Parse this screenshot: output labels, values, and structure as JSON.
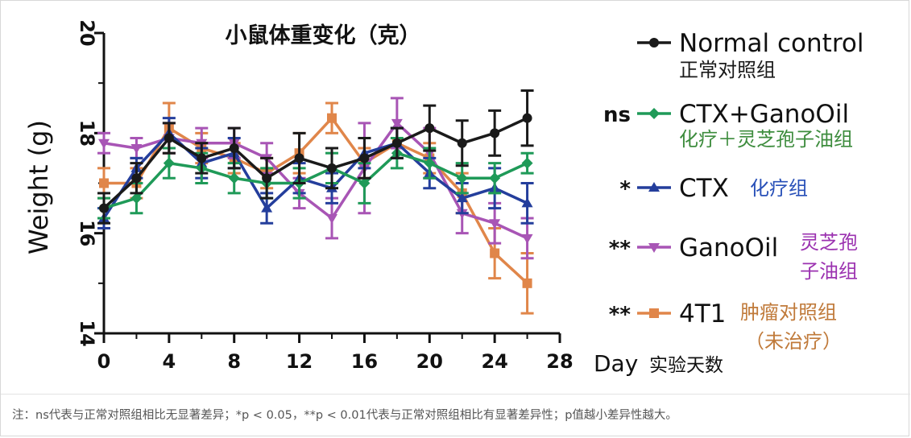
{
  "chart_data": {
    "type": "line",
    "title": "小鼠体重变化（克）",
    "xlabel": "Day",
    "xlabel_cn": "实验天数",
    "ylabel": "Weight (g)",
    "xlim": [
      0,
      28
    ],
    "ylim": [
      14,
      20
    ],
    "xticks": [
      "0",
      "4",
      "8",
      "12",
      "16",
      "20",
      "24",
      "28"
    ],
    "xtick_values": [
      0,
      4,
      8,
      12,
      16,
      20,
      24,
      28
    ],
    "yticks": [
      "14",
      "16",
      "18",
      "20"
    ],
    "ytick_values": [
      14,
      16,
      18,
      20
    ],
    "x": [
      0,
      2,
      4,
      6,
      8,
      10,
      12,
      14,
      16,
      18,
      20,
      22,
      24,
      26
    ],
    "grid": false,
    "legend_position": "right",
    "series": [
      {
        "name": "Normal control",
        "name_cn": "正常对照组",
        "significance": "",
        "color": "#1a1a1a",
        "marker": "circle",
        "values": [
          16.5,
          17.1,
          17.9,
          17.5,
          17.7,
          17.1,
          17.5,
          17.3,
          17.5,
          17.8,
          18.1,
          17.8,
          18.0,
          18.3
        ],
        "errors": [
          0.3,
          0.3,
          0.3,
          0.3,
          0.4,
          0.4,
          0.5,
          0.4,
          0.4,
          0.3,
          0.45,
          0.45,
          0.45,
          0.55
        ],
        "label_color_cn": "#1a1a1a"
      },
      {
        "name": "CTX+GanoOil",
        "name_cn": "化疗＋灵芝孢子油组",
        "significance": "ns",
        "color": "#1f9a58",
        "marker": "diamond",
        "values": [
          16.5,
          16.7,
          17.4,
          17.3,
          17.1,
          17.0,
          17.0,
          17.3,
          17.0,
          17.6,
          17.4,
          17.1,
          17.1,
          17.4
        ],
        "errors": [
          0.2,
          0.3,
          0.3,
          0.3,
          0.3,
          0.3,
          0.3,
          0.3,
          0.4,
          0.3,
          0.3,
          0.3,
          0.3,
          0.2
        ],
        "label_color_cn": "#3d8c3d"
      },
      {
        "name": "CTX",
        "name_cn": "化疗组",
        "significance": "*",
        "color": "#243e9c",
        "marker": "triangle-up",
        "values": [
          16.3,
          17.3,
          18.0,
          17.4,
          17.6,
          16.5,
          17.1,
          16.9,
          17.6,
          17.8,
          17.2,
          16.7,
          16.9,
          16.6
        ],
        "errors": [
          0.2,
          0.2,
          0.3,
          0.3,
          0.3,
          0.3,
          0.3,
          0.3,
          0.3,
          0.3,
          0.3,
          0.3,
          0.4,
          0.4
        ],
        "label_color_cn": "#2850b8"
      },
      {
        "name": "GanoOil",
        "name_cn": "灵芝孢子油组",
        "significance": "**",
        "color": "#a855b5",
        "marker": "triangle-down",
        "values": [
          17.8,
          17.7,
          17.9,
          17.8,
          17.8,
          17.5,
          16.8,
          16.3,
          17.3,
          18.2,
          17.6,
          16.4,
          16.2,
          15.9
        ],
        "errors": [
          0.2,
          0.2,
          0.3,
          0.3,
          0.3,
          0.3,
          0.3,
          0.4,
          0.9,
          0.5,
          0.5,
          0.4,
          0.4,
          0.4
        ],
        "label_color_cn": "#9b32b0"
      },
      {
        "name": "4T1",
        "name_cn": "肿瘤对照组",
        "name_cn2": "（未治疗）",
        "significance": "**",
        "color": "#e0864a",
        "marker": "square",
        "values": [
          17.0,
          17.0,
          18.1,
          17.7,
          17.5,
          17.2,
          17.6,
          18.3,
          17.4,
          17.8,
          17.5,
          16.8,
          15.6,
          15.0
        ],
        "errors": [
          0.3,
          0.3,
          0.5,
          0.3,
          0.3,
          0.3,
          0.4,
          0.3,
          0.3,
          0.3,
          0.3,
          0.4,
          0.5,
          0.6
        ],
        "label_color_cn": "#c07a3a"
      }
    ]
  },
  "footnote": "注：ns代表与正常对照组相比无显著差异；*p < 0.05，**p < 0.01代表与正常对照组相比有显著差异性；p值越小差异性越大。"
}
